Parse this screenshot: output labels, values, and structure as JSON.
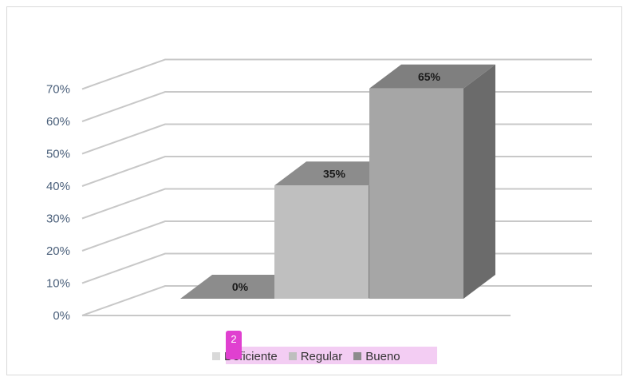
{
  "chart_data": {
    "type": "bar",
    "style": "3d",
    "categories": [
      "Deficiente",
      "Regular",
      "Bueno"
    ],
    "values": [
      0,
      35,
      65
    ],
    "data_labels": [
      "0%",
      "35%",
      "65%"
    ],
    "yticks": [
      "0%",
      "10%",
      "20%",
      "30%",
      "40%",
      "50%",
      "60%",
      "70%"
    ],
    "ylim": [
      0,
      70
    ],
    "grid": true,
    "legend_position": "bottom",
    "colors": {
      "Deficiente": {
        "front": "#d9d9d9",
        "top": "#8c8c8c",
        "side": "#7a7a7a"
      },
      "Regular": {
        "front": "#bfbfbf",
        "top": "#8c8c8c",
        "side": "#7a7a7a"
      },
      "Bueno": {
        "front": "#a6a6a6",
        "top": "#7f7f7f",
        "side": "#6b6b6b"
      }
    }
  },
  "legend": {
    "items": [
      {
        "label": "Deficiente",
        "color": "#d9d9d9"
      },
      {
        "label": "Regular",
        "color": "#bfbfbf"
      },
      {
        "label": "Bueno",
        "color": "#8c8c8c"
      }
    ]
  },
  "page_badge": "2"
}
